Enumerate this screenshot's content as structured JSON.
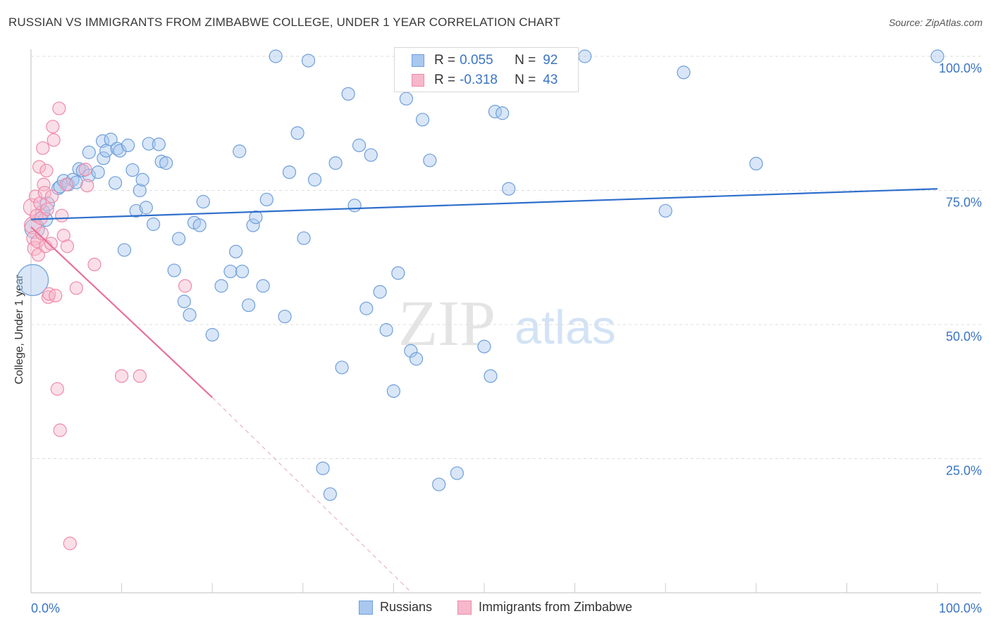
{
  "header": {
    "title": "RUSSIAN VS IMMIGRANTS FROM ZIMBABWE COLLEGE, UNDER 1 YEAR CORRELATION CHART",
    "source": "Source: ZipAtlas.com"
  },
  "watermark": {
    "zip": "ZIP",
    "atlas": "atlas"
  },
  "legend": {
    "rows": [
      {
        "r_label": "R =",
        "r_value": "0.055",
        "n_label": "N =",
        "n_value": "92"
      },
      {
        "r_label": "R =",
        "r_value": "-0.318",
        "n_label": "N =",
        "n_value": "43"
      }
    ]
  },
  "colors": {
    "russians_fill": "#a8c8f0",
    "russians_stroke": "#6f9fd8",
    "russians_line": "#2f6fcc",
    "zimbabwe_fill": "#f7b8cc",
    "zimbabwe_stroke": "#ee8aa8",
    "zimbabwe_line": "#e8709a",
    "axis_text": "#3a74c4",
    "grid": "#dddddd"
  },
  "chart_data": {
    "type": "scatter",
    "title": "RUSSIAN VS IMMIGRANTS FROM ZIMBABWE COLLEGE, UNDER 1 YEAR CORRELATION CHART",
    "xlabel": "",
    "ylabel": "College, Under 1 year",
    "xlim": [
      0,
      100
    ],
    "ylim": [
      0,
      103
    ],
    "x_tick_labels": [
      "0.0%",
      "100.0%"
    ],
    "y_ticks": [
      25,
      50,
      75,
      100
    ],
    "y_tick_labels": [
      "25.0%",
      "50.0%",
      "75.0%",
      "100.0%"
    ],
    "grid": true,
    "legend_placement": "top-center",
    "series": [
      {
        "name": "Russians",
        "r": 0.055,
        "n": 92,
        "trend": {
          "x": [
            0,
            100
          ],
          "y": [
            69.6,
            75.3
          ]
        },
        "points": [
          {
            "x": 0.2,
            "y": 58.3,
            "s": 22
          },
          {
            "x": 0.4,
            "y": 67.9,
            "s": 14
          },
          {
            "x": 1.3,
            "y": 71.0,
            "s": 10
          },
          {
            "x": 1.6,
            "y": 69.6,
            "s": 10
          },
          {
            "x": 1.8,
            "y": 72.5,
            "s": 10
          },
          {
            "x": 3.0,
            "y": 75.4,
            "s": 9
          },
          {
            "x": 3.2,
            "y": 75.7,
            "s": 9
          },
          {
            "x": 3.6,
            "y": 76.8,
            "s": 9
          },
          {
            "x": 4.1,
            "y": 76.1,
            "s": 9
          },
          {
            "x": 4.6,
            "y": 77.0,
            "s": 9
          },
          {
            "x": 5.0,
            "y": 76.5,
            "s": 9
          },
          {
            "x": 5.3,
            "y": 79.0,
            "s": 9
          },
          {
            "x": 5.7,
            "y": 78.7,
            "s": 9
          },
          {
            "x": 6.4,
            "y": 77.8,
            "s": 9
          },
          {
            "x": 6.4,
            "y": 82.1,
            "s": 9
          },
          {
            "x": 7.4,
            "y": 78.4,
            "s": 9
          },
          {
            "x": 7.9,
            "y": 84.2,
            "s": 9
          },
          {
            "x": 8.0,
            "y": 81.0,
            "s": 9
          },
          {
            "x": 8.3,
            "y": 82.4,
            "s": 9
          },
          {
            "x": 8.8,
            "y": 84.5,
            "s": 9
          },
          {
            "x": 9.3,
            "y": 76.4,
            "s": 9
          },
          {
            "x": 9.5,
            "y": 82.8,
            "s": 9
          },
          {
            "x": 9.8,
            "y": 82.4,
            "s": 9
          },
          {
            "x": 10.3,
            "y": 63.9,
            "s": 9
          },
          {
            "x": 10.7,
            "y": 83.4,
            "s": 9
          },
          {
            "x": 11.2,
            "y": 78.8,
            "s": 9
          },
          {
            "x": 11.6,
            "y": 71.2,
            "s": 9
          },
          {
            "x": 12.0,
            "y": 75.0,
            "s": 9
          },
          {
            "x": 12.3,
            "y": 77.0,
            "s": 9
          },
          {
            "x": 12.7,
            "y": 71.8,
            "s": 9
          },
          {
            "x": 13.0,
            "y": 83.7,
            "s": 9
          },
          {
            "x": 13.5,
            "y": 68.7,
            "s": 9
          },
          {
            "x": 14.1,
            "y": 83.6,
            "s": 9
          },
          {
            "x": 14.4,
            "y": 80.4,
            "s": 9
          },
          {
            "x": 14.9,
            "y": 80.1,
            "s": 9
          },
          {
            "x": 15.8,
            "y": 60.1,
            "s": 9
          },
          {
            "x": 16.3,
            "y": 66.0,
            "s": 9
          },
          {
            "x": 16.9,
            "y": 54.3,
            "s": 9
          },
          {
            "x": 17.5,
            "y": 51.8,
            "s": 9
          },
          {
            "x": 18.0,
            "y": 69.0,
            "s": 9
          },
          {
            "x": 18.6,
            "y": 68.5,
            "s": 9
          },
          {
            "x": 19.0,
            "y": 72.9,
            "s": 9
          },
          {
            "x": 20.0,
            "y": 48.1,
            "s": 9
          },
          {
            "x": 21.0,
            "y": 57.2,
            "s": 9
          },
          {
            "x": 22.0,
            "y": 59.9,
            "s": 9
          },
          {
            "x": 22.6,
            "y": 63.6,
            "s": 9
          },
          {
            "x": 23.0,
            "y": 82.3,
            "s": 9
          },
          {
            "x": 23.3,
            "y": 59.9,
            "s": 9
          },
          {
            "x": 24.0,
            "y": 53.6,
            "s": 9
          },
          {
            "x": 24.5,
            "y": 68.5,
            "s": 9
          },
          {
            "x": 24.8,
            "y": 70.0,
            "s": 9
          },
          {
            "x": 25.6,
            "y": 57.2,
            "s": 9
          },
          {
            "x": 26.0,
            "y": 73.3,
            "s": 9
          },
          {
            "x": 27.0,
            "y": 100.0,
            "s": 9
          },
          {
            "x": 28.0,
            "y": 51.5,
            "s": 9
          },
          {
            "x": 28.5,
            "y": 78.4,
            "s": 9
          },
          {
            "x": 29.4,
            "y": 85.7,
            "s": 9
          },
          {
            "x": 30.1,
            "y": 66.1,
            "s": 9
          },
          {
            "x": 30.6,
            "y": 99.2,
            "s": 9
          },
          {
            "x": 31.3,
            "y": 77.0,
            "s": 9
          },
          {
            "x": 32.2,
            "y": 23.2,
            "s": 9
          },
          {
            "x": 33.0,
            "y": 18.4,
            "s": 9
          },
          {
            "x": 33.6,
            "y": 80.1,
            "s": 9
          },
          {
            "x": 34.3,
            "y": 42.0,
            "s": 9
          },
          {
            "x": 35.0,
            "y": 93.0,
            "s": 9
          },
          {
            "x": 35.7,
            "y": 72.2,
            "s": 9
          },
          {
            "x": 36.2,
            "y": 83.4,
            "s": 9
          },
          {
            "x": 37.0,
            "y": 53.0,
            "s": 9
          },
          {
            "x": 37.5,
            "y": 81.6,
            "s": 9
          },
          {
            "x": 38.5,
            "y": 56.1,
            "s": 9
          },
          {
            "x": 39.2,
            "y": 49.0,
            "s": 9
          },
          {
            "x": 40.0,
            "y": 37.6,
            "s": 9
          },
          {
            "x": 40.5,
            "y": 59.6,
            "s": 9
          },
          {
            "x": 41.4,
            "y": 92.1,
            "s": 9
          },
          {
            "x": 41.9,
            "y": 45.1,
            "s": 9
          },
          {
            "x": 42.5,
            "y": 43.6,
            "s": 9
          },
          {
            "x": 43.2,
            "y": 88.2,
            "s": 9
          },
          {
            "x": 44.0,
            "y": 80.6,
            "s": 9
          },
          {
            "x": 45.0,
            "y": 20.2,
            "s": 9
          },
          {
            "x": 47.0,
            "y": 22.3,
            "s": 9
          },
          {
            "x": 48.0,
            "y": 99.2,
            "s": 9
          },
          {
            "x": 50.0,
            "y": 45.9,
            "s": 9
          },
          {
            "x": 50.7,
            "y": 40.4,
            "s": 9
          },
          {
            "x": 51.2,
            "y": 89.7,
            "s": 9
          },
          {
            "x": 52.0,
            "y": 89.4,
            "s": 9
          },
          {
            "x": 52.7,
            "y": 75.3,
            "s": 9
          },
          {
            "x": 53.8,
            "y": 100.0,
            "s": 9
          },
          {
            "x": 59.0,
            "y": 100.0,
            "s": 9
          },
          {
            "x": 61.1,
            "y": 100.0,
            "s": 9
          },
          {
            "x": 70.0,
            "y": 71.2,
            "s": 9
          },
          {
            "x": 72.0,
            "y": 97.0,
            "s": 9
          },
          {
            "x": 80.0,
            "y": 80.0,
            "s": 9
          },
          {
            "x": 100.0,
            "y": 100.0,
            "s": 9
          }
        ]
      },
      {
        "name": "Immigrants from Zimbabwe",
        "r": -0.318,
        "n": 43,
        "trend": {
          "x": [
            0,
            20
          ],
          "y": [
            68.2,
            36.4
          ]
        },
        "trend_extension": {
          "x": [
            20,
            42
          ],
          "y": [
            36.4,
            0
          ]
        },
        "points": [
          {
            "x": 0.1,
            "y": 71.9,
            "s": 12
          },
          {
            "x": 0.2,
            "y": 68.5,
            "s": 12
          },
          {
            "x": 0.3,
            "y": 66.1,
            "s": 10
          },
          {
            "x": 0.4,
            "y": 64.2,
            "s": 10
          },
          {
            "x": 0.5,
            "y": 73.9,
            "s": 9
          },
          {
            "x": 0.6,
            "y": 70.3,
            "s": 9
          },
          {
            "x": 0.7,
            "y": 65.5,
            "s": 9
          },
          {
            "x": 0.8,
            "y": 63.0,
            "s": 9
          },
          {
            "x": 0.9,
            "y": 79.4,
            "s": 9
          },
          {
            "x": 1.0,
            "y": 72.6,
            "s": 9
          },
          {
            "x": 1.1,
            "y": 69.8,
            "s": 9
          },
          {
            "x": 1.2,
            "y": 67.0,
            "s": 9
          },
          {
            "x": 1.3,
            "y": 82.9,
            "s": 9
          },
          {
            "x": 1.4,
            "y": 76.1,
            "s": 9
          },
          {
            "x": 1.5,
            "y": 74.6,
            "s": 9
          },
          {
            "x": 1.6,
            "y": 64.6,
            "s": 9
          },
          {
            "x": 1.7,
            "y": 78.7,
            "s": 9
          },
          {
            "x": 1.8,
            "y": 71.5,
            "s": 9
          },
          {
            "x": 1.9,
            "y": 55.1,
            "s": 9
          },
          {
            "x": 2.0,
            "y": 55.7,
            "s": 9
          },
          {
            "x": 2.2,
            "y": 65.1,
            "s": 9
          },
          {
            "x": 2.3,
            "y": 73.9,
            "s": 9
          },
          {
            "x": 2.4,
            "y": 86.9,
            "s": 9
          },
          {
            "x": 2.5,
            "y": 84.4,
            "s": 9
          },
          {
            "x": 2.7,
            "y": 55.4,
            "s": 9
          },
          {
            "x": 2.9,
            "y": 38.0,
            "s": 9
          },
          {
            "x": 3.1,
            "y": 90.3,
            "s": 9
          },
          {
            "x": 3.2,
            "y": 30.3,
            "s": 9
          },
          {
            "x": 3.4,
            "y": 70.3,
            "s": 9
          },
          {
            "x": 3.6,
            "y": 66.6,
            "s": 9
          },
          {
            "x": 3.9,
            "y": 76.1,
            "s": 9
          },
          {
            "x": 4.0,
            "y": 64.6,
            "s": 9
          },
          {
            "x": 4.3,
            "y": 9.2,
            "s": 9
          },
          {
            "x": 5.0,
            "y": 56.8,
            "s": 9
          },
          {
            "x": 6.0,
            "y": 78.9,
            "s": 9
          },
          {
            "x": 6.2,
            "y": 75.9,
            "s": 9
          },
          {
            "x": 7.0,
            "y": 61.2,
            "s": 9
          },
          {
            "x": 10.0,
            "y": 40.4,
            "s": 9
          },
          {
            "x": 12.0,
            "y": 40.4,
            "s": 9
          },
          {
            "x": 17.0,
            "y": 57.2,
            "s": 9
          }
        ]
      }
    ]
  },
  "bottom_legend": {
    "items": [
      "Russians",
      "Immigrants from Zimbabwe"
    ]
  }
}
